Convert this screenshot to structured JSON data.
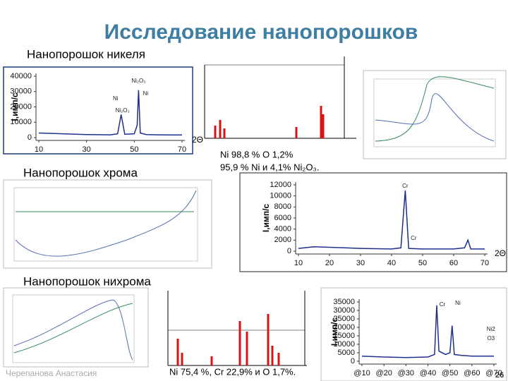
{
  "title": "Исследование нанопорошков",
  "sections": [
    "Нанопорошок никеля",
    "Нанопорошок хрома",
    "Нанопорошок нихрома"
  ],
  "captions": [
    "Ni 98,8 % O 1,2%",
    "95,9 % Ni и 4,1% Ni₂O₃.",
    "Ni 75,4 %, Cr 22,9% и O 1,7%."
  ],
  "footer": "Черепанова Анастасия",
  "page_number": "26",
  "plots": [
    {
      "type": "line",
      "ylabel": "I,имп/с",
      "xlabel": "2Θ",
      "xlim": [
        10,
        70
      ],
      "ylim": [
        0,
        40000
      ],
      "xticks": [
        10,
        30,
        50,
        70
      ],
      "yticks": [
        0,
        10000,
        20000,
        30000,
        40000
      ],
      "annotations": [
        "Ni",
        "Ni₂O₃",
        "Ni₂O₃",
        "Ni"
      ],
      "series": [
        {
          "color": "#1c2f8a",
          "x": [
            10,
            20,
            30,
            40,
            43,
            44.5,
            46,
            50,
            51.2,
            51.8,
            52.5,
            55,
            60,
            65,
            70
          ],
          "values": [
            3000,
            2500,
            2000,
            1800,
            2500,
            15000,
            2200,
            2500,
            8000,
            31000,
            3000,
            2000,
            1800,
            1700,
            1700
          ]
        }
      ]
    },
    {
      "type": "line",
      "ylabel": "I,имп/с",
      "xlabel": "2Θ",
      "xlim": [
        10,
        70
      ],
      "ylim": [
        0,
        12000
      ],
      "xticks": [
        10,
        20,
        30,
        40,
        50,
        60,
        70
      ],
      "yticks": [
        0,
        2000,
        4000,
        6000,
        8000,
        10000,
        12000
      ],
      "annotations": [
        "Cr",
        "Cr"
      ],
      "series": [
        {
          "color": "#1c2f8a",
          "x": [
            10,
            15,
            20,
            25,
            30,
            40,
            43,
            44.4,
            45.5,
            50,
            60,
            63.5,
            64.6,
            65.5,
            70
          ],
          "values": [
            500,
            800,
            700,
            600,
            500,
            400,
            600,
            11000,
            500,
            400,
            400,
            600,
            2000,
            400,
            400
          ]
        }
      ]
    },
    {
      "type": "line",
      "ylabel": "I,имп/с",
      "xlim": [
        10,
        70
      ],
      "ylim": [
        0,
        35000
      ],
      "xticks": [
        {
          "value": 10,
          "label": "@10"
        },
        {
          "value": 20,
          "label": "@20"
        },
        {
          "value": 30,
          "label": "@30"
        },
        {
          "value": 40,
          "label": "@40"
        },
        {
          "value": 50,
          "label": "@50"
        },
        {
          "value": 60,
          "label": "@60"
        },
        {
          "value": 70,
          "label": "@70"
        }
      ],
      "yticks": [
        0,
        5000,
        10000,
        15000,
        20000,
        25000,
        30000,
        35000
      ],
      "annotations": [
        "Cr",
        "Ni",
        "Ni2",
        "O3"
      ],
      "series": [
        {
          "color": "#1c2f8a",
          "x": [
            10,
            20,
            30,
            40,
            43,
            44,
            45,
            48,
            50,
            51,
            52,
            55,
            60,
            70
          ],
          "values": [
            3000,
            2500,
            2200,
            2500,
            4000,
            33000,
            6000,
            4000,
            5000,
            21000,
            4000,
            3500,
            3000,
            3000
          ]
        }
      ]
    }
  ]
}
